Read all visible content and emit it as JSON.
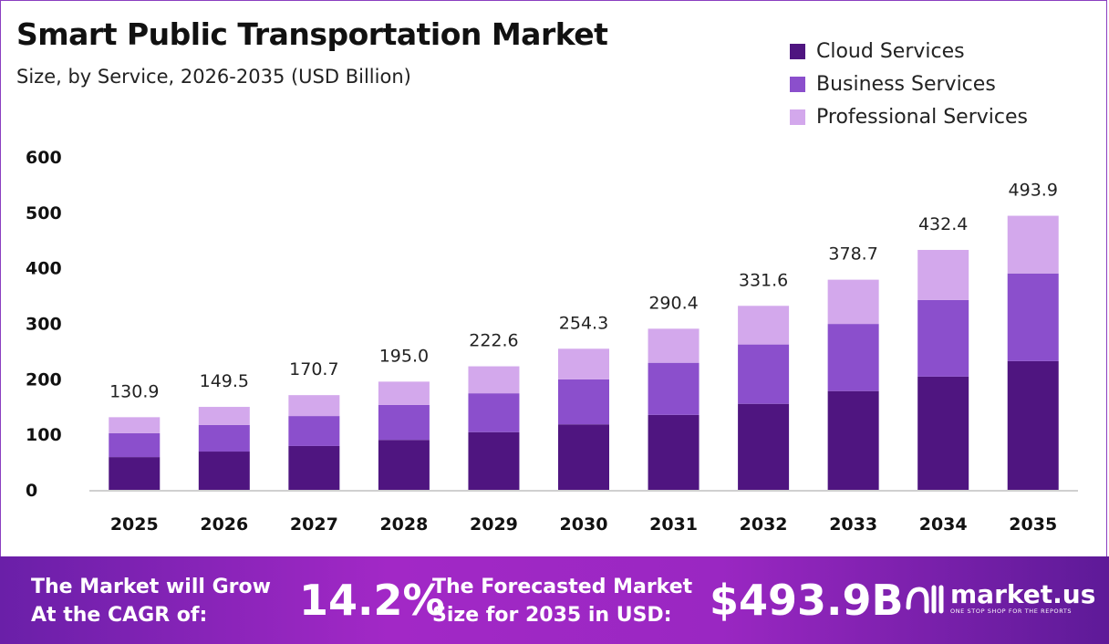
{
  "chart_data": {
    "type": "bar",
    "stacked": true,
    "title": "Smart Public Transportation Market",
    "subtitle": "Size, by Service, 2026-2035 (USD Billion)",
    "categories": [
      "2025",
      "2026",
      "2027",
      "2028",
      "2029",
      "2030",
      "2031",
      "2032",
      "2033",
      "2034",
      "2035"
    ],
    "series": [
      {
        "name": "Cloud Services",
        "color": "#4f1580",
        "values": [
          59,
          69,
          79,
          90,
          104,
          118,
          135,
          155,
          178,
          204,
          232
        ]
      },
      {
        "name": "Business Services",
        "color": "#8b4fcc",
        "values": [
          43,
          48,
          54,
          63,
          70,
          81,
          94,
          107,
          121,
          138,
          158
        ]
      },
      {
        "name": "Professional Services",
        "color": "#d3a8ec",
        "values": [
          28.9,
          32.5,
          37.7,
          42,
          48.6,
          55.3,
          61.4,
          69.6,
          79.7,
          90.4,
          103.9
        ]
      }
    ],
    "totals": [
      "130.9",
      "149.5",
      "170.7",
      "195.0",
      "222.6",
      "254.3",
      "290.4",
      "331.6",
      "378.7",
      "432.4",
      "493.9"
    ],
    "yticks": [
      "0",
      "100",
      "200",
      "300",
      "400",
      "500",
      "600"
    ],
    "ylim": [
      0,
      600
    ],
    "grid": false,
    "legend_position": "top-right"
  },
  "footer": {
    "cagr_label_1": "The Market will Grow",
    "cagr_label_2": "At the CAGR of:",
    "cagr_value": "14.2%",
    "forecast_label_1": "The Forecasted Market",
    "forecast_label_2": "Size for 2035 in USD:",
    "forecast_value": "$493.9B",
    "logo_text": "market.us",
    "logo_tagline": "ONE STOP SHOP FOR THE REPORTS"
  }
}
